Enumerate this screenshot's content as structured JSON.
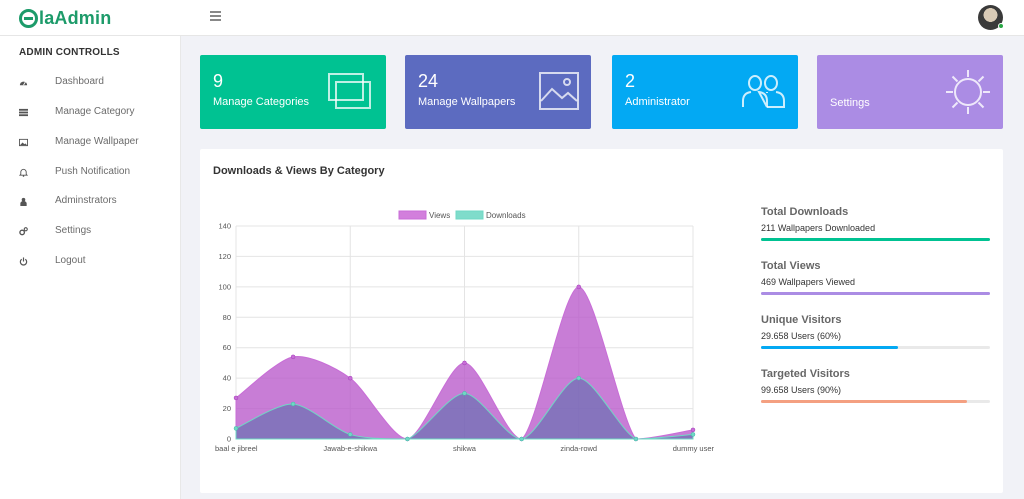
{
  "header": {
    "brand": "laAdmin",
    "colors": {
      "brand": "#1d9b6a"
    }
  },
  "sidebar": {
    "title": "ADMIN CONTROLLS",
    "items": [
      {
        "label": "Dashboard",
        "icon": "dashboard-icon"
      },
      {
        "label": "Manage Category",
        "icon": "list-icon"
      },
      {
        "label": "Manage Wallpaper",
        "icon": "image-icon"
      },
      {
        "label": "Push Notification",
        "icon": "bell-icon"
      },
      {
        "label": "Adminstrators",
        "icon": "users-icon"
      },
      {
        "label": "Settings",
        "icon": "cogs-icon"
      },
      {
        "label": "Logout",
        "icon": "power-icon"
      }
    ]
  },
  "cards": [
    {
      "value": "9",
      "label": "Manage Categories",
      "color": "#00c292",
      "icon": "layers-icon"
    },
    {
      "value": "24",
      "label": "Manage Wallpapers",
      "color": "#5c6bc0",
      "icon": "picture-icon"
    },
    {
      "value": "2",
      "label": "Administrator",
      "color": "#03a9f3",
      "icon": "users-outline-icon"
    },
    {
      "value": "",
      "label": "Settings",
      "color": "#ab8ce4",
      "icon": "gear-outline-icon"
    }
  ],
  "panel": {
    "title": "Downloads & Views By Category"
  },
  "progress": [
    {
      "title": "Total Downloads",
      "subtitle": "211 Wallpapers Downloaded",
      "fraction": 1.0,
      "color": "#00c292"
    },
    {
      "title": "Total Views",
      "subtitle": "469 Wallpapers Viewed",
      "fraction": 1.0,
      "color": "#ab8ce4"
    },
    {
      "title": "Unique Visitors",
      "subtitle": "29.658 Users (60%)",
      "fraction": 0.6,
      "color": "#03a9f3"
    },
    {
      "title": "Targeted Visitors",
      "subtitle": "99.658 Users (90%)",
      "fraction": 0.9,
      "color": "#f4a081"
    }
  ],
  "chart_data": {
    "type": "area",
    "x_labels_shown": [
      "baal e jibreel",
      "Jawab-e-shikwa",
      "shikwa",
      "zinda-rowd",
      "dummy user"
    ],
    "x": [
      "baal e jibreel",
      "",
      "Jawab-e-shikwa",
      "",
      "shikwa",
      "",
      "zinda-rowd",
      "",
      "dummy user"
    ],
    "series": [
      {
        "name": "Views",
        "values": [
          27,
          54,
          40,
          0,
          50,
          0,
          100,
          0,
          6
        ],
        "color": "#c86dd7"
      },
      {
        "name": "Downloads",
        "values": [
          7,
          23,
          3,
          0,
          30,
          0,
          40,
          0,
          3
        ],
        "color": "#6fd8c4"
      }
    ],
    "ylim": [
      0,
      140
    ],
    "y_ticks": [
      0,
      20,
      40,
      60,
      80,
      100,
      120,
      140
    ],
    "legend": "top-center",
    "grid": true
  }
}
